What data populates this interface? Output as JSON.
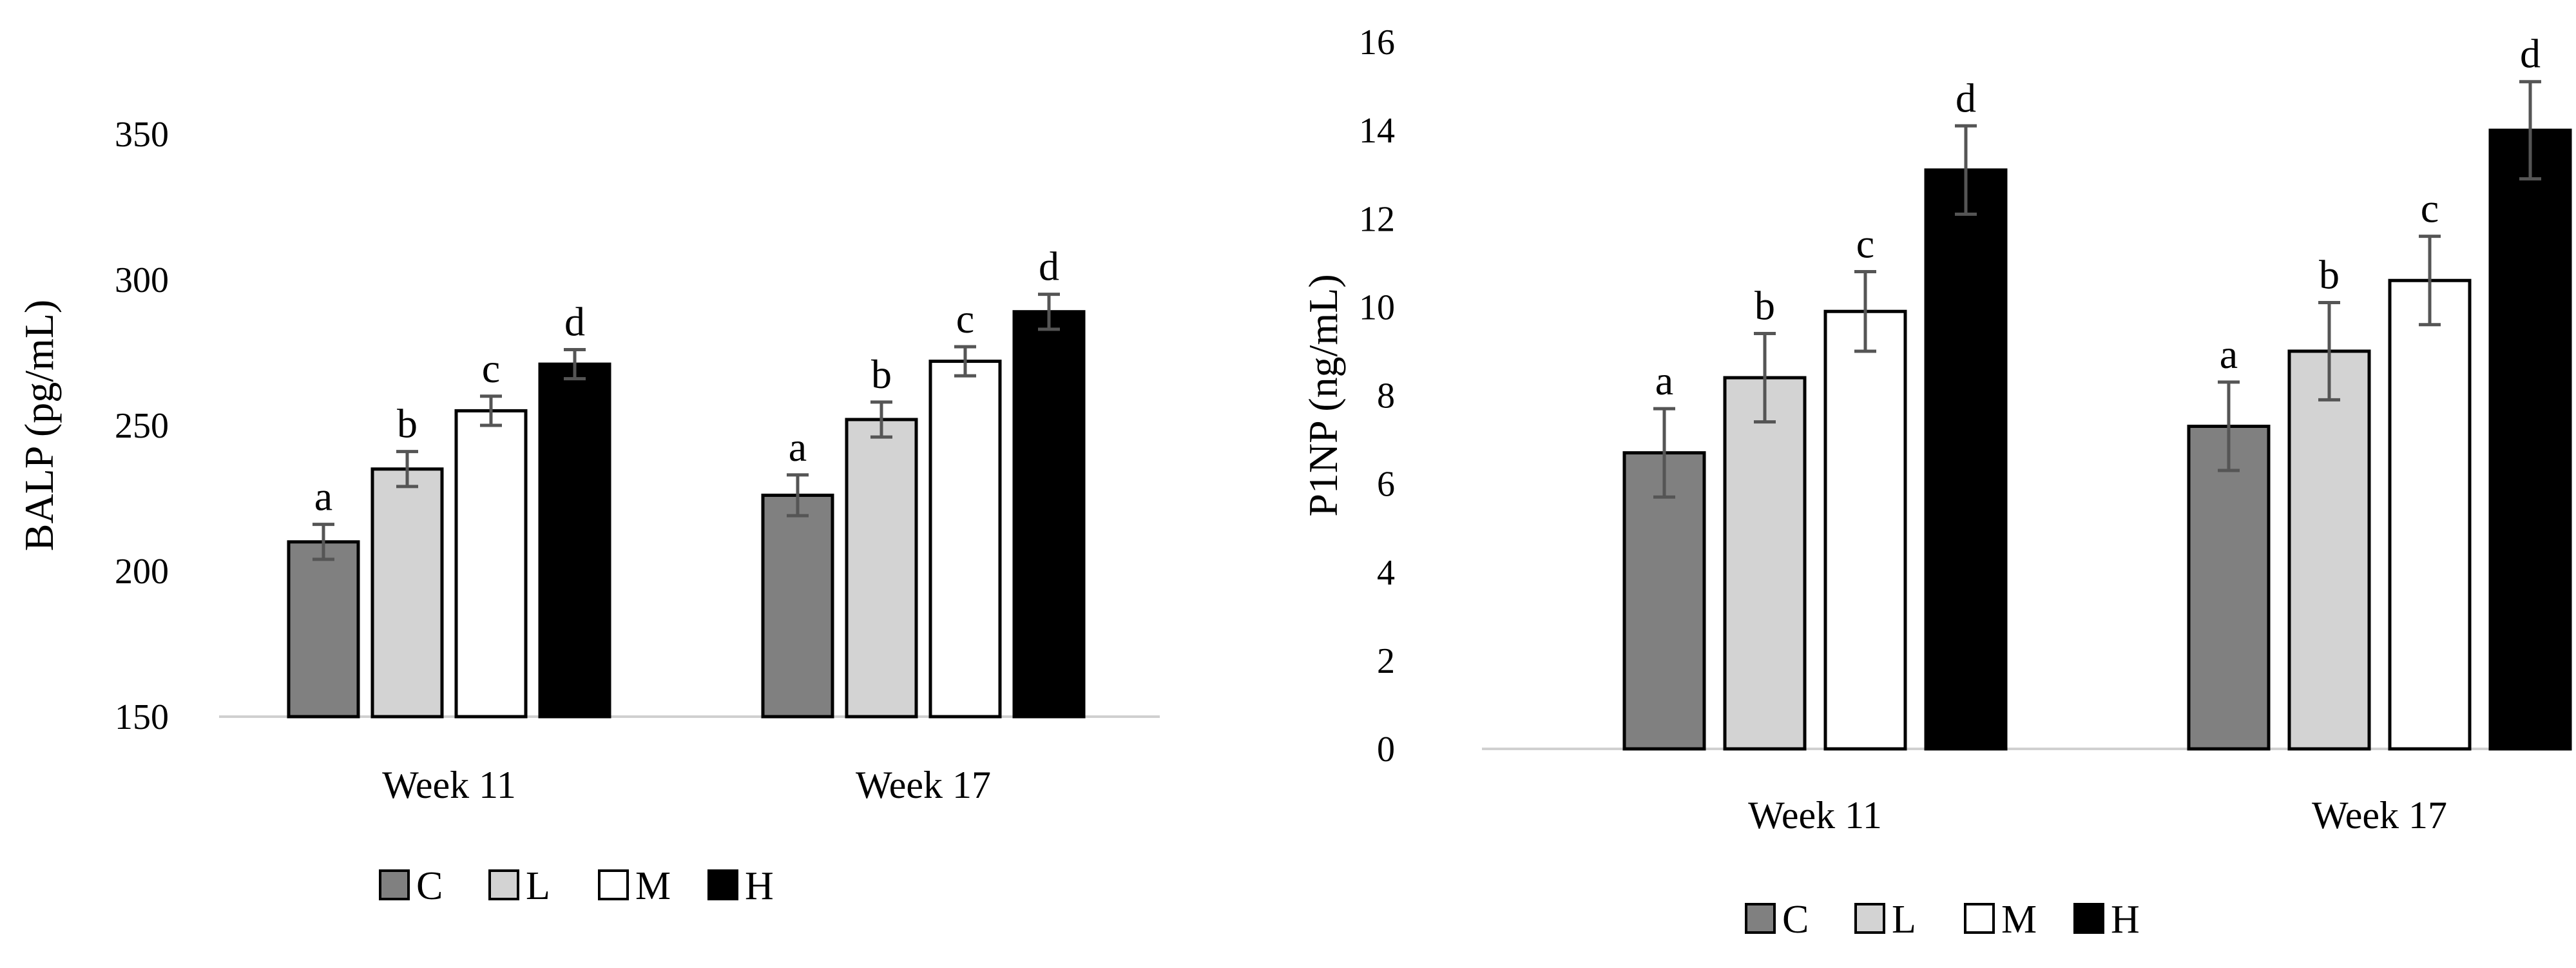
{
  "chart_data": [
    {
      "type": "bar",
      "title": "",
      "xlabel": "",
      "ylabel": "BALP (pg/mL)",
      "ylim": [
        150,
        350
      ],
      "yticks": [
        150,
        200,
        250,
        300,
        350
      ],
      "grid": false,
      "legend_position": "bottom",
      "categories": [
        "Week 11",
        "Week 17"
      ],
      "series": [
        {
          "name": "C",
          "color": "#808080",
          "values": [
            210,
            226
          ],
          "errors": [
            6,
            7
          ],
          "letters": [
            "a",
            "a"
          ]
        },
        {
          "name": "L",
          "color": "#d3d3d3",
          "values": [
            235,
            252
          ],
          "errors": [
            6,
            6
          ],
          "letters": [
            "b",
            "b"
          ]
        },
        {
          "name": "M",
          "color": "#ffffff",
          "values": [
            255,
            272
          ],
          "errors": [
            5,
            5
          ],
          "letters": [
            "c",
            "c"
          ]
        },
        {
          "name": "H",
          "color": "#000000",
          "values": [
            271,
            289
          ],
          "errors": [
            5,
            6
          ],
          "letters": [
            "d",
            "d"
          ]
        }
      ]
    },
    {
      "type": "bar",
      "title": "",
      "xlabel": "",
      "ylabel": "P1NP (ng/mL)",
      "ylim": [
        0,
        16
      ],
      "yticks": [
        0,
        2,
        4,
        6,
        8,
        10,
        12,
        14,
        16
      ],
      "grid": false,
      "legend_position": "bottom",
      "categories": [
        "Week 11",
        "Week 17"
      ],
      "series": [
        {
          "name": "C",
          "color": "#808080",
          "values": [
            6.7,
            7.3
          ],
          "errors": [
            1.0,
            1.0
          ],
          "letters": [
            "a",
            "a"
          ]
        },
        {
          "name": "L",
          "color": "#d3d3d3",
          "values": [
            8.4,
            9.0
          ],
          "errors": [
            1.0,
            1.1
          ],
          "letters": [
            "b",
            "b"
          ]
        },
        {
          "name": "M",
          "color": "#ffffff",
          "values": [
            9.9,
            10.6
          ],
          "errors": [
            0.9,
            1.0
          ],
          "letters": [
            "c",
            "c"
          ]
        },
        {
          "name": "H",
          "color": "#000000",
          "values": [
            13.1,
            14.0
          ],
          "errors": [
            1.0,
            1.1
          ],
          "letters": [
            "d",
            "d"
          ]
        }
      ]
    }
  ]
}
